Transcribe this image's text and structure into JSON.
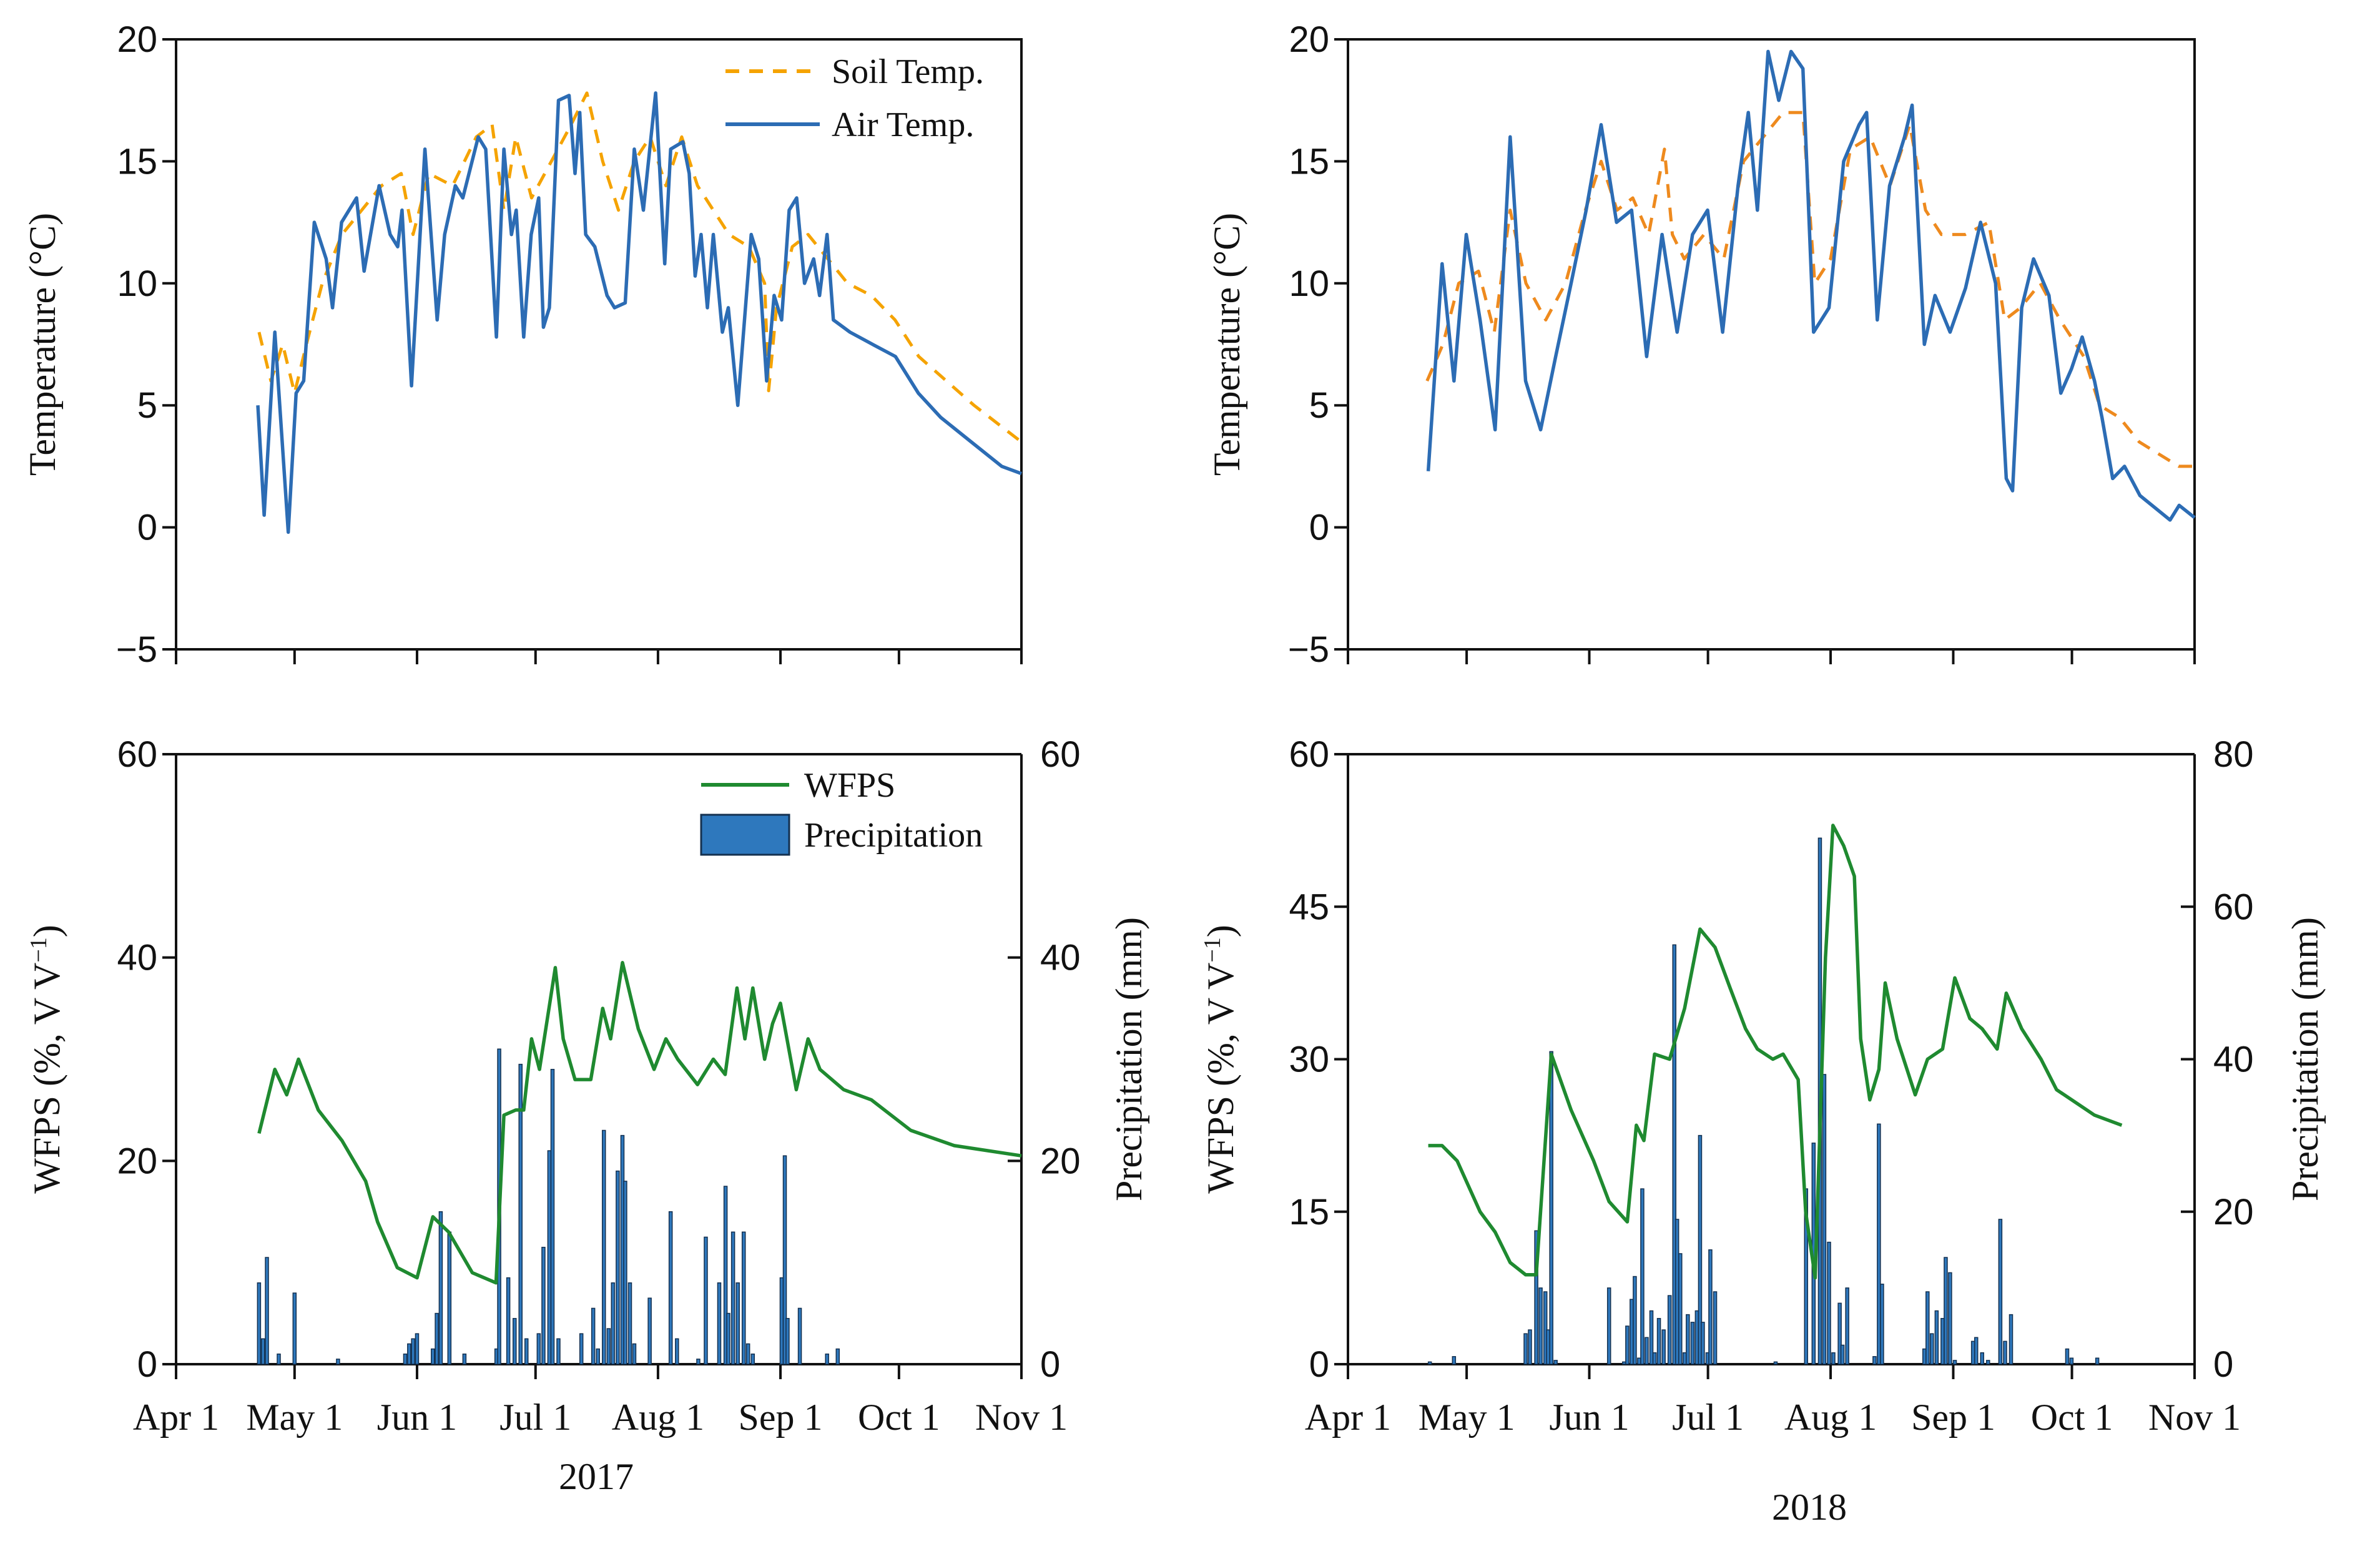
{
  "chart_data": [
    {
      "id": "temp2017",
      "type": "line",
      "xlabel": "",
      "ylabel": "Temperature (°C)",
      "ylim": [
        -5,
        20
      ],
      "yticks": [
        -5,
        0,
        5,
        10,
        15,
        20
      ],
      "xlim_days_since_apr1": [
        0,
        214
      ],
      "xticks": [
        0,
        30,
        61,
        91,
        122,
        153,
        183,
        214
      ],
      "xticklabels": [],
      "legend": [
        "Soil Temp.",
        "Air Temp."
      ],
      "legend_position": "top-right",
      "colors": {
        "soil": "#f5a300",
        "air": "#2c6cb4"
      },
      "series": [
        {
          "name": "Soil Temp.",
          "x": [
            21,
            24,
            27,
            30,
            33,
            37,
            42,
            47,
            52,
            57,
            60,
            64,
            70,
            76,
            80,
            83,
            86,
            90,
            95,
            100,
            104,
            108,
            112,
            116,
            120,
            124,
            128,
            132,
            136,
            140,
            145,
            149,
            150,
            152,
            156,
            160,
            165,
            170,
            176,
            182,
            188,
            195,
            202,
            210,
            214
          ],
          "y": [
            8,
            6,
            7.5,
            5.5,
            7.5,
            10,
            12,
            13,
            14,
            14.5,
            12,
            14.5,
            14,
            16,
            16.5,
            13,
            16,
            13.5,
            15,
            16.5,
            17.8,
            15,
            13,
            15,
            16,
            14,
            16,
            14,
            13,
            12,
            11.5,
            10,
            5.6,
            9,
            11.5,
            12,
            11,
            10,
            9.5,
            8.5,
            7,
            6,
            5,
            4,
            3.5
          ]
        },
        {
          "name": "Air Temp.",
          "x": [
            20.7,
            22.3,
            25,
            28.4,
            30.4,
            32.3,
            35,
            38,
            39.6,
            41.9,
            45.7,
            47.6,
            51.4,
            54.2,
            56.1,
            57.2,
            59.6,
            63,
            66.1,
            68,
            70.7,
            72.6,
            76.5,
            78.4,
            81.1,
            83,
            84.9,
            86.1,
            88,
            89.9,
            91.8,
            93,
            94.5,
            96.8,
            99.5,
            101,
            102.2,
            103.7,
            106,
            109.1,
            111,
            113.7,
            116,
            118.3,
            121.4,
            123.7,
            125.2,
            128.3,
            129.9,
            131.4,
            132.9,
            134.5,
            136,
            138.3,
            139.8,
            142.2,
            145.6,
            147.5,
            149.5,
            151.4,
            153.3,
            155.2,
            157.1,
            159.1,
            161.4,
            162.9,
            164.8,
            166.4,
            170.6,
            176.3,
            182.1,
            187.9,
            193.6,
            201.3,
            209,
            214
          ],
          "y": [
            5,
            0.5,
            8,
            -0.2,
            5.5,
            6,
            12.5,
            11,
            9,
            12.5,
            13.5,
            10.5,
            14,
            12,
            11.5,
            13,
            5.8,
            15.5,
            8.5,
            12,
            14,
            13.5,
            16,
            15.5,
            7.8,
            15.5,
            12,
            13,
            7.8,
            12,
            13.5,
            8.2,
            9,
            17.5,
            17.7,
            14.5,
            17,
            12,
            11.5,
            9.5,
            9,
            9.2,
            15.5,
            13,
            17.8,
            10.8,
            15.5,
            15.8,
            14.5,
            10.3,
            12,
            9,
            12,
            8,
            9,
            5,
            12,
            11,
            6,
            9.5,
            8.5,
            13,
            13.5,
            10,
            11,
            9.5,
            12,
            8.5,
            8,
            7.5,
            7,
            5.5,
            4.5,
            3.5,
            2.5,
            2.2
          ]
        }
      ]
    },
    {
      "id": "temp2018",
      "type": "line",
      "xlabel": "",
      "ylabel": "Temperature (°C)",
      "ylim": [
        -5,
        20
      ],
      "yticks": [
        -5,
        0,
        5,
        10,
        15,
        20
      ],
      "xlim_days_since_apr1": [
        0,
        214
      ],
      "xticks": [
        0,
        30,
        61,
        91,
        122,
        153,
        183,
        214
      ],
      "xticklabels": [],
      "legend": [],
      "colors": {
        "soil": "#ee8a1e",
        "air": "#2c6cb4"
      },
      "series": [
        {
          "name": "Soil Temp.",
          "x": [
            20,
            24,
            28,
            33,
            37,
            41,
            45,
            50,
            55,
            60,
            64,
            68,
            72,
            76,
            80,
            82,
            85,
            90,
            95,
            100,
            105,
            110,
            115,
            118,
            122,
            127,
            132,
            137,
            142,
            146,
            150,
            156,
            162,
            166,
            170,
            175,
            180,
            186,
            190,
            195,
            200,
            205,
            210,
            214
          ],
          "y": [
            6,
            7.5,
            10,
            10.5,
            8,
            13,
            10,
            8.5,
            10,
            13,
            15,
            13,
            13.5,
            12,
            15.5,
            12,
            11,
            12,
            11,
            15,
            16,
            17,
            17,
            10,
            11,
            15.5,
            16,
            14,
            16.5,
            13,
            12,
            12,
            12.5,
            8.5,
            9,
            10,
            8.5,
            7,
            5,
            4.5,
            3.5,
            3,
            2.5,
            2.5
          ]
        },
        {
          "name": "Air Temp.",
          "x": [
            20.3,
            23.8,
            26.8,
            29.9,
            33.4,
            37.2,
            41,
            44.9,
            48.7,
            52.5,
            56.4,
            60.2,
            64,
            67.9,
            71.7,
            75.5,
            79.4,
            83.2,
            87.1,
            90.9,
            94.7,
            98.6,
            101.2,
            103.5,
            106.2,
            108.9,
            112,
            115,
            117.7,
            121.6,
            125.3,
            129.2,
            131.1,
            133.8,
            136.9,
            140.7,
            142.6,
            145.7,
            148.4,
            152.2,
            156.1,
            159.9,
            163.7,
            166.4,
            168,
            170.3,
            173.3,
            177.2,
            180.2,
            182.9,
            185.6,
            188.7,
            190.6,
            193.3,
            196.3,
            200.2,
            204,
            207.8,
            210.1,
            214
          ],
          "y": [
            2.3,
            10.8,
            6,
            12,
            8.5,
            4,
            16,
            6,
            4,
            7,
            10,
            13,
            16.5,
            12.5,
            13,
            7,
            12,
            8,
            12,
            13,
            8,
            14,
            17,
            13,
            19.5,
            17.5,
            19.5,
            18.8,
            8,
            9,
            15,
            16.5,
            17,
            8.5,
            14,
            16,
            17.3,
            7.5,
            9.5,
            8,
            9.8,
            12.5,
            10,
            2,
            1.5,
            9,
            11,
            9.5,
            5.5,
            6.5,
            7.8,
            6,
            4.5,
            2,
            2.5,
            1.3,
            0.8,
            0.3,
            0.9,
            0.4
          ]
        }
      ]
    },
    {
      "id": "wfps2017",
      "type": "bar+line",
      "xlabel": "2017",
      "ylabel": "WFPS (%, V V",
      "ylabel_superscript": "−1",
      "ylabel_suffix": ")",
      "ylabel_right": "Precipitation (mm)",
      "ylim": [
        0,
        60
      ],
      "yticks": [
        0,
        20,
        40,
        60
      ],
      "ylim_right": [
        0,
        60
      ],
      "yticks_right": [
        0,
        20,
        40,
        60
      ],
      "xlim_days_since_apr1": [
        0,
        214
      ],
      "xticks": [
        0,
        30,
        61,
        91,
        122,
        153,
        183,
        214
      ],
      "xticklabels": [
        "Apr 1",
        "May 1",
        "Jun 1",
        "Jul 1",
        "Aug 1",
        "Sep 1",
        "Oct 1",
        "Nov 1"
      ],
      "legend": [
        "WFPS",
        "Precipitation"
      ],
      "legend_position": "top-right",
      "colors": {
        "wfps": "#1f8a30",
        "precip": "#2e78bd",
        "precip_edge": "#14304f"
      },
      "wfps": {
        "x": [
          21,
          25,
          28,
          31,
          36,
          42,
          48,
          51,
          56,
          61,
          65,
          69,
          75,
          81,
          83,
          86,
          88,
          90,
          92,
          96,
          98,
          101,
          105,
          108,
          110,
          113,
          117,
          121,
          124,
          127,
          132,
          136,
          139,
          142,
          144,
          146,
          149,
          151,
          153,
          157,
          160,
          163,
          169,
          176,
          186,
          197,
          214
        ],
        "y": [
          22.7,
          29,
          26.5,
          30,
          25,
          22,
          18,
          14,
          9.5,
          8.5,
          14.5,
          13,
          9,
          8,
          24.5,
          25,
          25,
          32,
          29,
          39,
          32,
          28,
          28,
          35,
          32,
          39.5,
          33,
          29,
          32,
          30,
          27.5,
          30,
          28.5,
          37,
          32,
          37,
          30,
          33.5,
          35.5,
          27,
          32,
          29,
          27,
          26,
          23,
          21.5,
          20.5
        ]
      },
      "precipitation": {
        "x": [
          21,
          22,
          23,
          26,
          30,
          41,
          58,
          59,
          60,
          61,
          65,
          66,
          67,
          69.2,
          73,
          81.1,
          81.8,
          84.1,
          85.7,
          87.2,
          88.7,
          91.8,
          93,
          94.5,
          95.3,
          96.8,
          102.6,
          105.6,
          106.8,
          108.3,
          109.5,
          110.6,
          111.8,
          113,
          113.7,
          114.9,
          116,
          119.9,
          125.2,
          126.8,
          132.2,
          134.1,
          137.5,
          139.1,
          139.8,
          141,
          142.2,
          143.7,
          144.8,
          146,
          153.3,
          154.1,
          154.8,
          157.9,
          164.8,
          167.5
        ],
        "y": [
          8,
          2.5,
          10.5,
          1,
          7,
          0.5,
          1,
          2,
          2.5,
          3,
          1.5,
          5,
          15,
          13,
          1,
          1.5,
          31,
          8.5,
          4.5,
          29.5,
          2.5,
          3,
          11.5,
          21,
          29,
          2.5,
          3,
          5.5,
          1.5,
          23,
          3.5,
          8,
          19,
          22.5,
          18,
          8,
          2,
          6.5,
          15,
          2.5,
          0.5,
          12.5,
          8,
          17.5,
          5,
          13,
          8,
          13,
          2,
          1,
          8.5,
          20.5,
          4.5,
          5.5,
          1,
          1.5
        ]
      }
    },
    {
      "id": "wfps2018",
      "type": "bar+line",
      "xlabel": "2018",
      "ylabel": "WFPS (%, V V",
      "ylabel_superscript": "−1",
      "ylabel_suffix": ")",
      "ylabel_right": "Precipitation (mm)",
      "ylim": [
        0,
        60
      ],
      "yticks": [
        0,
        15,
        30,
        45,
        60
      ],
      "ylim_right": [
        0,
        80
      ],
      "yticks_right": [
        0,
        20,
        40,
        60,
        80
      ],
      "xlim_days_since_apr1": [
        0,
        214
      ],
      "xticks": [
        0,
        30,
        61,
        91,
        122,
        153,
        183,
        214
      ],
      "xticklabels": [
        "Apr 1",
        "May 1",
        "Jun 1",
        "Jul 1",
        "Aug 1",
        "Sep 1",
        "Oct 1",
        "Nov 1"
      ],
      "legend": [],
      "colors": {
        "wfps": "#1f8a30",
        "precip": "#2e78bd",
        "precip_edge": "#14304f"
      },
      "wfps": {
        "x": [
          20.3,
          23.8,
          27.6,
          33.4,
          37.2,
          41,
          44.9,
          47.6,
          51.4,
          56.4,
          62.1,
          66,
          70.6,
          72.9,
          74.8,
          77.5,
          81.3,
          85.1,
          89,
          92.8,
          96.6,
          100.5,
          103.5,
          107.4,
          110,
          113.8,
          115.7,
          118.1,
          120.7,
          122.6,
          125.3,
          128,
          129.6,
          131.9,
          134.2,
          135.8,
          138.8,
          143.4,
          146.5,
          150.3,
          153.4,
          157.2,
          160.3,
          164.1,
          166.4,
          170.3,
          175.2,
          179.1,
          188.7,
          195.6
        ],
        "y": [
          21.5,
          21.5,
          20,
          15,
          13,
          10,
          8.8,
          8.8,
          30.5,
          25,
          20,
          16,
          14,
          23.5,
          22,
          30.5,
          30,
          35,
          42.8,
          41,
          37,
          33,
          31,
          30,
          30.5,
          28,
          15,
          8.5,
          40,
          53,
          51,
          48,
          32,
          26,
          29,
          37.5,
          32,
          26.5,
          30,
          31,
          38,
          34,
          33,
          31,
          36.5,
          33,
          30,
          27,
          24.5,
          23.5
        ]
      },
      "precipitation": {
        "x": [
          20.7,
          26.8,
          44.9,
          46,
          47.6,
          48.7,
          49.9,
          50.6,
          51.4,
          52.5,
          66,
          69.8,
          70.6,
          71.7,
          72.5,
          73.6,
          74.4,
          75.5,
          76.7,
          77.5,
          78.6,
          79.8,
          81.3,
          82.5,
          83.2,
          84,
          85.1,
          85.9,
          87.1,
          88.2,
          89,
          89.7,
          90.9,
          91.6,
          92.8,
          108.1,
          115.8,
          117.7,
          119.3,
          120.4,
          121.6,
          122.7,
          124.3,
          125,
          126.2,
          133.1,
          134.2,
          135,
          145.7,
          146.5,
          147.6,
          148.8,
          150.3,
          151.1,
          152.2,
          153.4,
          158,
          158.8,
          160.3,
          161.8,
          164.9,
          166.1,
          167.6,
          181.8,
          182.9,
          189.4
        ],
        "y": [
          0.3,
          1,
          4,
          4.5,
          17.5,
          10,
          9.5,
          4.5,
          41,
          0.5,
          10,
          0.3,
          5,
          8.5,
          11.5,
          0.8,
          23,
          3.5,
          7,
          1.5,
          6,
          4.5,
          9,
          55,
          19,
          14.5,
          1.5,
          6.5,
          5.5,
          7,
          30,
          5.5,
          1.5,
          15,
          9.5,
          0.3,
          23,
          29,
          69,
          38,
          16,
          1.5,
          8,
          2.5,
          10,
          1,
          31.5,
          10.5,
          2,
          9.5,
          4,
          7,
          6,
          14,
          12,
          0.5,
          3,
          3.5,
          1.5,
          0.5,
          19,
          3,
          6.5,
          2,
          0.8,
          0.8
        ]
      }
    }
  ]
}
